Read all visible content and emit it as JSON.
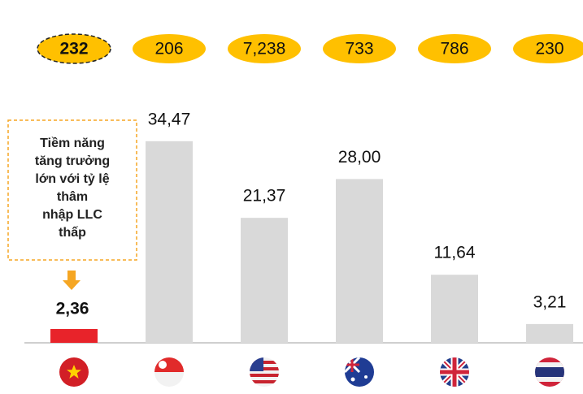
{
  "chart_data": {
    "type": "bar",
    "annotations": [
      "232",
      "206",
      "7,238",
      "733",
      "786",
      "230"
    ],
    "callout": [
      "Tiềm năng",
      "tăng trưởng",
      "lớn với tỷ lệ",
      "thâm",
      "nhập LLC",
      "thấp"
    ],
    "categories": [
      null,
      null,
      null,
      null,
      null,
      null
    ],
    "values": [
      2.36,
      34.47,
      21.37,
      28.0,
      11.64,
      3.21
    ],
    "value_labels": [
      "2,36",
      "34,47",
      "21,37",
      "28,00",
      "11,64",
      "3,21"
    ],
    "colors": [
      "#e8232a",
      "#d9d9d9",
      "#d9d9d9",
      "#d9d9d9",
      "#d9d9d9",
      "#d9d9d9"
    ],
    "ylim": [
      0,
      40
    ]
  }
}
